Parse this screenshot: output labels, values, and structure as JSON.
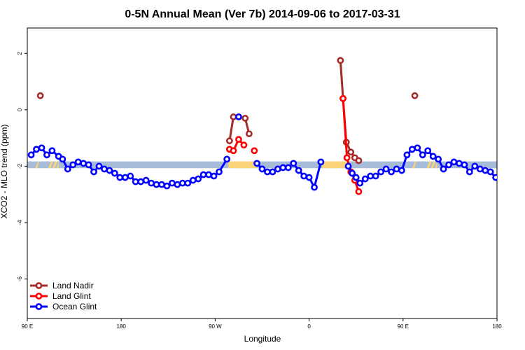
{
  "chart_data": {
    "type": "line",
    "title": "0-5N Annual Mean (Ver 7b)   2014-09-06 to 2017-03-31",
    "xlabel": "Longitude",
    "ylabel": "XCO2 - MLO trend (ppm)",
    "xlim": [
      0,
      360
    ],
    "ylim": [
      -7.4,
      2.9
    ],
    "x_ticks": [
      {
        "value": 0,
        "label": "90 E"
      },
      {
        "value": 72,
        "label": "180"
      },
      {
        "value": 144,
        "label": "90 W"
      },
      {
        "value": 216,
        "label": "0"
      },
      {
        "value": 288,
        "label": "90 E"
      },
      {
        "value": 360,
        "label": "180"
      }
    ],
    "y_ticks": [
      {
        "value": 2,
        "label": "2"
      },
      {
        "value": 0,
        "label": "0"
      },
      {
        "value": -2,
        "label": "-2"
      },
      {
        "value": -4,
        "label": "-4"
      },
      {
        "value": -6,
        "label": "-6"
      }
    ],
    "band": {
      "ymin": -2.07,
      "ymax": -1.83,
      "color": "#a7bcd8"
    },
    "land_spans": [
      {
        "x": [
          6,
          9
        ],
        "style": "diag"
      },
      {
        "x": [
          16,
          24
        ],
        "style": "diag"
      },
      {
        "x": [
          154,
          176
        ],
        "style": "solid"
      },
      {
        "x": [
          226,
          245
        ],
        "style": "solid"
      },
      {
        "x": [
          295,
          298
        ],
        "style": "diag"
      },
      {
        "x": [
          306,
          314
        ],
        "style": "diag"
      }
    ],
    "land_color": "#f9d47a",
    "series": [
      {
        "name": "Land Nadir",
        "color": "#a52a2a",
        "segments": [
          [
            {
              "x": 10,
              "y": 0.5
            }
          ],
          [
            {
              "x": 155,
              "y": -1.1
            },
            {
              "x": 158,
              "y": -0.25
            }
          ],
          [
            {
              "x": 167,
              "y": -0.3
            },
            {
              "x": 170,
              "y": -0.85
            }
          ],
          [
            {
              "x": 240,
              "y": 1.75
            },
            {
              "x": 242,
              "y": 0.4
            },
            {
              "x": 244.5,
              "y": -1.15
            },
            {
              "x": 248,
              "y": -1.5
            },
            {
              "x": 251,
              "y": -1.7
            },
            {
              "x": 254,
              "y": -1.8
            }
          ],
          [
            {
              "x": 297,
              "y": 0.5
            }
          ]
        ]
      },
      {
        "name": "Land Glint",
        "color": "#ff0000",
        "segments": [
          [
            {
              "x": 155,
              "y": -1.4
            },
            {
              "x": 158,
              "y": -1.45
            },
            {
              "x": 162,
              "y": -1.05
            },
            {
              "x": 166,
              "y": -1.25
            }
          ],
          [
            {
              "x": 174,
              "y": -1.45
            }
          ],
          [
            {
              "x": 242,
              "y": 0.4
            },
            {
              "x": 245,
              "y": -1.7
            },
            {
              "x": 248,
              "y": -2.2
            },
            {
              "x": 251,
              "y": -2.5
            },
            {
              "x": 254,
              "y": -2.9
            }
          ]
        ]
      },
      {
        "name": "Ocean Glint",
        "color": "#0000ff",
        "segments": [
          [
            {
              "x": 3,
              "y": -1.6
            },
            {
              "x": 7,
              "y": -1.4
            },
            {
              "x": 11,
              "y": -1.35
            },
            {
              "x": 15,
              "y": -1.6
            },
            {
              "x": 19,
              "y": -1.45
            },
            {
              "x": 24,
              "y": -1.65
            },
            {
              "x": 27,
              "y": -1.75
            },
            {
              "x": 31,
              "y": -2.1
            },
            {
              "x": 35,
              "y": -1.95
            },
            {
              "x": 39,
              "y": -1.85
            },
            {
              "x": 43,
              "y": -1.9
            },
            {
              "x": 47,
              "y": -1.95
            },
            {
              "x": 51,
              "y": -2.2
            },
            {
              "x": 55,
              "y": -2.0
            },
            {
              "x": 59,
              "y": -2.1
            },
            {
              "x": 63,
              "y": -2.15
            },
            {
              "x": 67,
              "y": -2.25
            },
            {
              "x": 71,
              "y": -2.4
            },
            {
              "x": 75,
              "y": -2.4
            },
            {
              "x": 79,
              "y": -2.35
            },
            {
              "x": 83,
              "y": -2.55
            },
            {
              "x": 87,
              "y": -2.55
            },
            {
              "x": 91,
              "y": -2.5
            },
            {
              "x": 95,
              "y": -2.6
            },
            {
              "x": 99,
              "y": -2.65
            },
            {
              "x": 103,
              "y": -2.65
            },
            {
              "x": 107,
              "y": -2.7
            },
            {
              "x": 111,
              "y": -2.6
            },
            {
              "x": 115,
              "y": -2.65
            },
            {
              "x": 119,
              "y": -2.6
            },
            {
              "x": 123,
              "y": -2.6
            },
            {
              "x": 127,
              "y": -2.5
            },
            {
              "x": 131,
              "y": -2.45
            },
            {
              "x": 135,
              "y": -2.3
            },
            {
              "x": 139,
              "y": -2.3
            },
            {
              "x": 143,
              "y": -2.35
            },
            {
              "x": 147,
              "y": -2.2
            },
            {
              "x": 153,
              "y": -1.75
            }
          ],
          [
            {
              "x": 162,
              "y": -0.25
            }
          ],
          [
            {
              "x": 176,
              "y": -1.9
            },
            {
              "x": 180,
              "y": -2.1
            },
            {
              "x": 184,
              "y": -2.2
            },
            {
              "x": 188,
              "y": -2.2
            },
            {
              "x": 192,
              "y": -2.1
            },
            {
              "x": 196,
              "y": -2.05
            },
            {
              "x": 200,
              "y": -2.05
            },
            {
              "x": 204,
              "y": -1.9
            },
            {
              "x": 208,
              "y": -2.15
            },
            {
              "x": 212,
              "y": -2.35
            },
            {
              "x": 216,
              "y": -2.4
            },
            {
              "x": 220,
              "y": -2.75
            },
            {
              "x": 225,
              "y": -1.85
            }
          ],
          [
            {
              "x": 246,
              "y": -2.0
            },
            {
              "x": 249,
              "y": -2.25
            },
            {
              "x": 252,
              "y": -2.4
            },
            {
              "x": 255,
              "y": -2.6
            },
            {
              "x": 259,
              "y": -2.45
            },
            {
              "x": 263,
              "y": -2.35
            },
            {
              "x": 267,
              "y": -2.35
            },
            {
              "x": 271,
              "y": -2.2
            },
            {
              "x": 275,
              "y": -2.1
            },
            {
              "x": 279,
              "y": -2.2
            },
            {
              "x": 283,
              "y": -2.1
            },
            {
              "x": 287,
              "y": -2.15
            },
            {
              "x": 291,
              "y": -1.6
            },
            {
              "x": 295,
              "y": -1.4
            },
            {
              "x": 299,
              "y": -1.35
            },
            {
              "x": 303,
              "y": -1.6
            },
            {
              "x": 307,
              "y": -1.45
            },
            {
              "x": 311,
              "y": -1.65
            },
            {
              "x": 315,
              "y": -1.75
            },
            {
              "x": 319,
              "y": -2.1
            },
            {
              "x": 323,
              "y": -1.95
            },
            {
              "x": 327,
              "y": -1.85
            },
            {
              "x": 331,
              "y": -1.9
            },
            {
              "x": 335,
              "y": -1.95
            },
            {
              "x": 339,
              "y": -2.2
            },
            {
              "x": 343,
              "y": -2.0
            },
            {
              "x": 347,
              "y": -2.1
            },
            {
              "x": 351,
              "y": -2.15
            },
            {
              "x": 355,
              "y": -2.2
            },
            {
              "x": 359,
              "y": -2.4
            }
          ]
        ]
      }
    ],
    "legend": {
      "position": "bottom-left"
    }
  }
}
